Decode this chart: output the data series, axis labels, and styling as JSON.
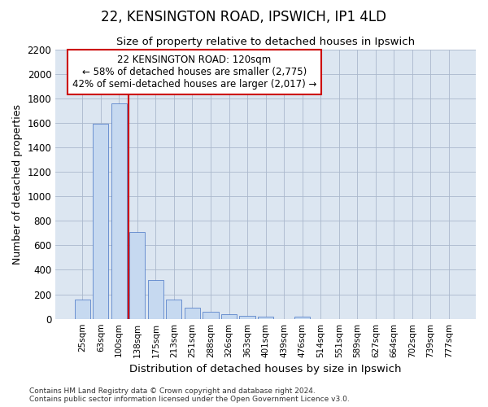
{
  "title1": "22, KENSINGTON ROAD, IPSWICH, IP1 4LD",
  "title2": "Size of property relative to detached houses in Ipswich",
  "xlabel": "Distribution of detached houses by size in Ipswich",
  "ylabel": "Number of detached properties",
  "categories": [
    "25sqm",
    "63sqm",
    "100sqm",
    "138sqm",
    "175sqm",
    "213sqm",
    "251sqm",
    "288sqm",
    "326sqm",
    "363sqm",
    "401sqm",
    "439sqm",
    "476sqm",
    "514sqm",
    "551sqm",
    "589sqm",
    "627sqm",
    "664sqm",
    "702sqm",
    "739sqm",
    "777sqm"
  ],
  "bar_values": [
    160,
    1590,
    1760,
    710,
    315,
    160,
    90,
    55,
    35,
    25,
    20,
    0,
    20,
    0,
    0,
    0,
    0,
    0,
    0,
    0,
    0
  ],
  "bar_color": "#c6d9f0",
  "bar_edge_color": "#4472c4",
  "background_color": "#ffffff",
  "plot_bg_color": "#dce6f1",
  "grid_color": "#aab8cc",
  "red_line_x": 2.5,
  "annotation_text": "22 KENSINGTON ROAD: 120sqm\n← 58% of detached houses are smaller (2,775)\n42% of semi-detached houses are larger (2,017) →",
  "annotation_box_color": "#ffffff",
  "annotation_edge_color": "#cc0000",
  "ylim": [
    0,
    2200
  ],
  "yticks": [
    0,
    200,
    400,
    600,
    800,
    1000,
    1200,
    1400,
    1600,
    1800,
    2000,
    2200
  ],
  "footer": "Contains HM Land Registry data © Crown copyright and database right 2024.\nContains public sector information licensed under the Open Government Licence v3.0."
}
